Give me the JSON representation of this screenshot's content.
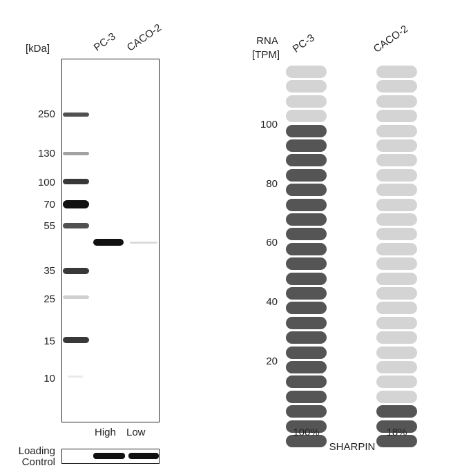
{
  "western_blot": {
    "unit_label": "[kDa]",
    "lanes": [
      "PC-3",
      "CACO-2"
    ],
    "markers": [
      "250",
      "130",
      "100",
      "70",
      "55",
      "35",
      "25",
      "15",
      "10"
    ],
    "levels": [
      "High",
      "Low"
    ],
    "loading_control_label": [
      "Loading",
      "Control"
    ]
  },
  "rna": {
    "axis_title": [
      "RNA",
      "[TPM]"
    ],
    "lanes": [
      "PC-3",
      "CACO-2"
    ],
    "ticks": [
      "100",
      "80",
      "60",
      "40",
      "20"
    ],
    "percentages": [
      "100%",
      "18%"
    ],
    "gene": "SHARPIN",
    "pill_count": 26,
    "filled": [
      22,
      3
    ],
    "colors": {
      "filled": "#555555",
      "empty": "#d4d4d4"
    }
  }
}
